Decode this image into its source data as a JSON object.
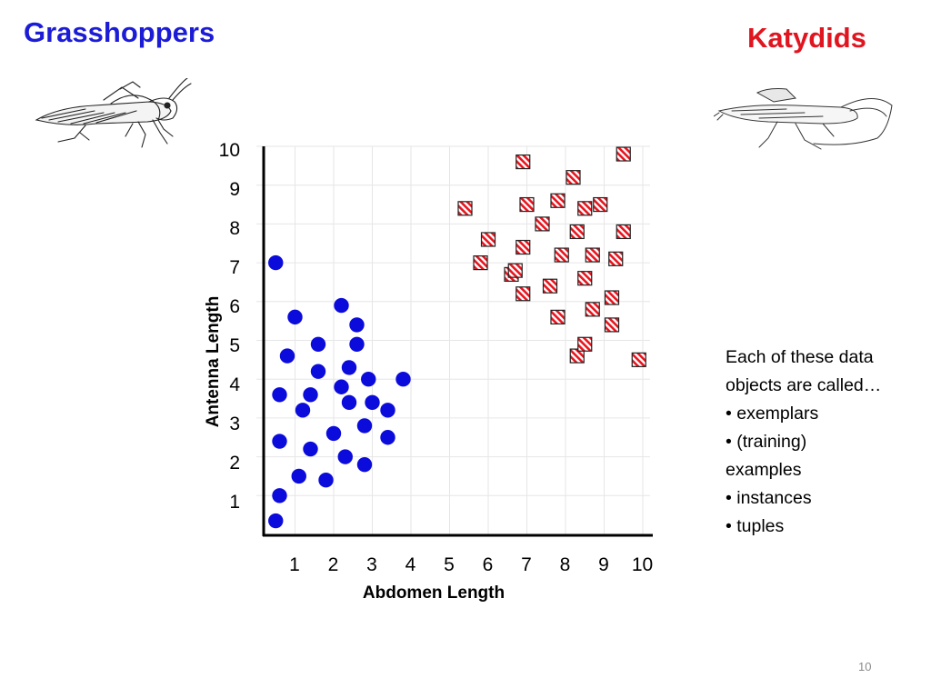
{
  "slide": {
    "title_left": "Grasshoppers",
    "title_right": "Katydids",
    "page_number": "10"
  },
  "side_text": {
    "line1": "Each of these data",
    "line2": "objects are called…",
    "bullet1": "• exemplars",
    "bullet2": "• (training)",
    "bullet2_cont": "examples",
    "bullet3": "• instances",
    "bullet4": "• tuples"
  },
  "colors": {
    "grasshopper": "#0b0bdc",
    "katydid_stripe": "#e8141e",
    "title_left": "#1c1cd6",
    "title_right": "#e0151f",
    "grid": "#e6e6e6"
  },
  "chart_data": {
    "type": "scatter",
    "xlabel": "Abdomen Length",
    "ylabel": "Antenna Length",
    "xlim": [
      0,
      10
    ],
    "ylim": [
      0,
      10
    ],
    "x_ticks": [
      "1",
      "2",
      "3",
      "4",
      "5",
      "6",
      "7",
      "8",
      "9",
      "10"
    ],
    "y_ticks": [
      "1",
      "2",
      "3",
      "4",
      "5",
      "6",
      "7",
      "8",
      "9",
      "10"
    ],
    "grid": true,
    "series": [
      {
        "marker": "circle",
        "points": [
          [
            0.5,
            7.0
          ],
          [
            1.0,
            5.6
          ],
          [
            0.8,
            4.6
          ],
          [
            0.6,
            3.6
          ],
          [
            0.6,
            2.4
          ],
          [
            0.6,
            1.0
          ],
          [
            0.5,
            0.35
          ],
          [
            1.1,
            1.5
          ],
          [
            1.2,
            3.2
          ],
          [
            1.4,
            3.6
          ],
          [
            1.4,
            2.2
          ],
          [
            1.6,
            4.2
          ],
          [
            1.6,
            4.9
          ],
          [
            1.8,
            1.4
          ],
          [
            2.0,
            2.6
          ],
          [
            2.2,
            5.9
          ],
          [
            2.2,
            3.8
          ],
          [
            2.3,
            2.0
          ],
          [
            2.4,
            4.3
          ],
          [
            2.4,
            3.4
          ],
          [
            2.6,
            4.9
          ],
          [
            2.6,
            5.4
          ],
          [
            2.8,
            2.8
          ],
          [
            2.8,
            1.8
          ],
          [
            2.9,
            4.0
          ],
          [
            3.0,
            3.4
          ],
          [
            3.4,
            3.2
          ],
          [
            3.4,
            2.5
          ],
          [
            3.8,
            4.0
          ]
        ]
      },
      {
        "marker": "hatched-square",
        "points": [
          [
            5.4,
            8.4
          ],
          [
            5.8,
            7.0
          ],
          [
            6.0,
            7.6
          ],
          [
            6.6,
            6.7
          ],
          [
            6.7,
            6.8
          ],
          [
            6.9,
            9.6
          ],
          [
            6.9,
            7.4
          ],
          [
            6.9,
            6.2
          ],
          [
            7.0,
            8.5
          ],
          [
            7.4,
            8.0
          ],
          [
            7.6,
            6.4
          ],
          [
            7.8,
            8.6
          ],
          [
            7.8,
            5.6
          ],
          [
            7.9,
            7.2
          ],
          [
            8.2,
            9.2
          ],
          [
            8.3,
            7.8
          ],
          [
            8.3,
            4.6
          ],
          [
            8.5,
            8.4
          ],
          [
            8.5,
            6.6
          ],
          [
            8.5,
            4.9
          ],
          [
            8.7,
            7.2
          ],
          [
            8.7,
            5.8
          ],
          [
            8.9,
            8.5
          ],
          [
            9.2,
            6.1
          ],
          [
            9.2,
            5.4
          ],
          [
            9.3,
            7.1
          ],
          [
            9.5,
            9.8
          ],
          [
            9.5,
            7.8
          ],
          [
            9.9,
            4.5
          ]
        ]
      }
    ]
  }
}
